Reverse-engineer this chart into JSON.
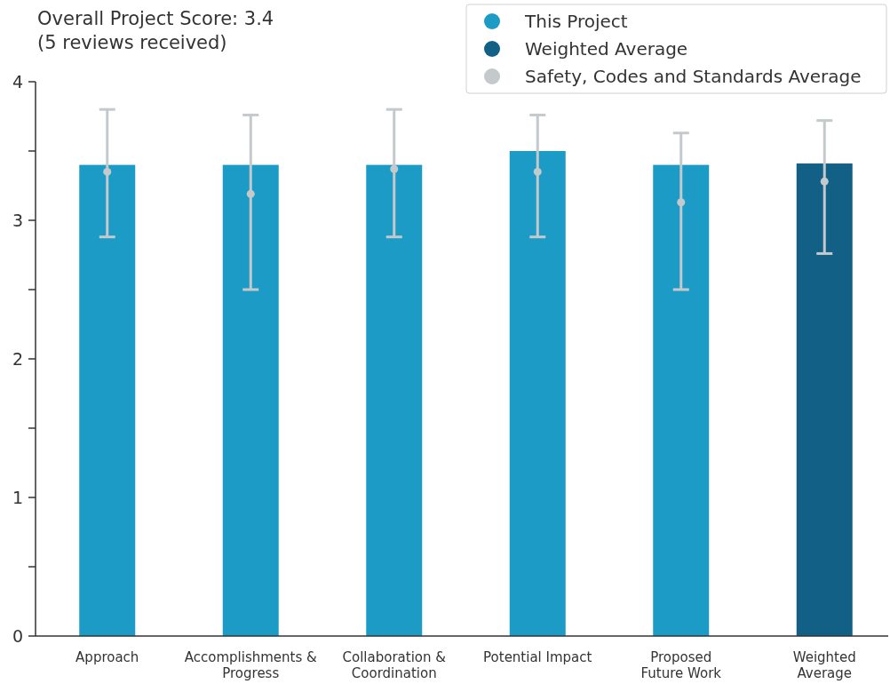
{
  "chart_data": {
    "type": "bar",
    "title": "Overall Project Score: 3.4",
    "subtitle": "(5 reviews received)",
    "categories": [
      "Approach",
      "Accomplishments &\nProgress",
      "Collaboration &\nCoordination",
      "Potential Impact",
      "Proposed\nFuture Work",
      "Weighted\nAverage"
    ],
    "series": [
      {
        "name": "This Project",
        "color": "#1c9bc6",
        "values": [
          3.4,
          3.4,
          3.4,
          3.5,
          3.4,
          null
        ]
      },
      {
        "name": "Weighted Average",
        "color": "#136087",
        "values": [
          null,
          null,
          null,
          null,
          null,
          3.41
        ]
      },
      {
        "name": "Safety, Codes and Standards Average",
        "type": "scatter",
        "color": "#c4c9cc",
        "values": [
          3.35,
          3.19,
          3.37,
          3.35,
          3.13,
          3.28
        ],
        "errors": [
          [
            2.88,
            3.8
          ],
          [
            2.5,
            3.76
          ],
          [
            2.88,
            3.8
          ],
          [
            2.88,
            3.76
          ],
          [
            2.5,
            3.63
          ],
          [
            2.76,
            3.72
          ]
        ]
      }
    ],
    "ylim": [
      0,
      4
    ],
    "yticks": [
      0,
      {
        "value": 0.5,
        "label": null
      },
      1,
      {
        "value": 1.5,
        "label": null
      },
      2,
      {
        "value": 2.5,
        "label": null
      },
      3,
      {
        "value": 3.5,
        "label": null
      },
      4
    ],
    "legend": "top right",
    "marker": "circle",
    "grid": false
  }
}
